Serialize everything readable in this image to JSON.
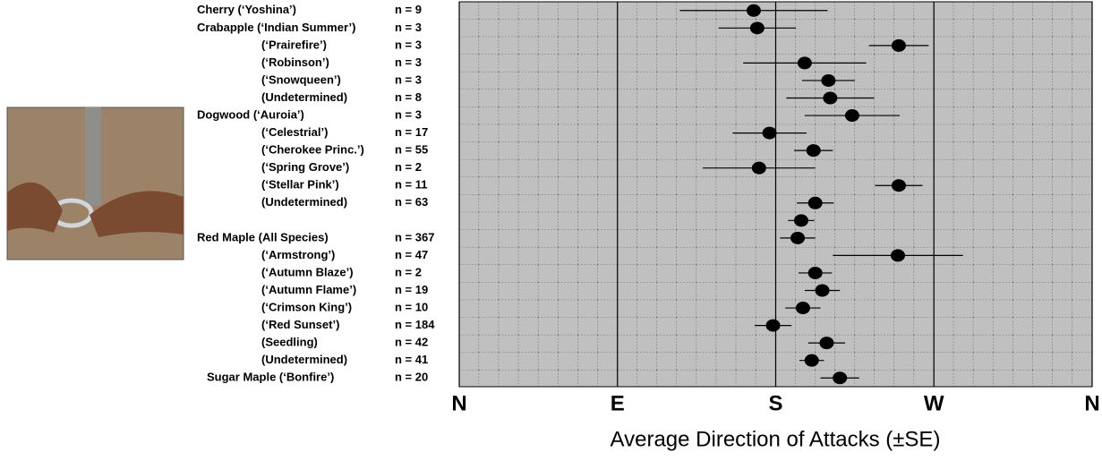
{
  "chart_data": {
    "type": "dot-errorbar",
    "xlabel": "Average Direction of Attacks (±SE)",
    "categories": [
      "Cherry (‘Yoshina’)",
      "Crabapple (‘Indian Summer’)",
      "(‘Prairefire’)",
      "(‘Robinson’)",
      "(‘Snowqueen’)",
      "(Undetermined)",
      "Dogwood (‘Auroia’)",
      "(‘Celestrial’)",
      "(‘Cherokee Princ.’)",
      "(‘Spring Grove’)",
      "(‘Stellar Pink’)",
      "(Undetermined)",
      null,
      "Red Maple (All Species)",
      "(‘Armstrong’)",
      "(‘Autumn Blaze’)",
      "(‘Autumn Flame’)",
      "(‘Crimson King’)",
      "(‘Red Sunset’)",
      "(Seedling)",
      "(Undetermined)",
      "Sugar Maple (‘Bonfire’)"
    ],
    "n_labels": [
      "n = 9",
      "n = 3",
      "n = 3",
      "n = 3",
      "n = 3",
      "n = 8",
      "n = 3",
      "n = 17",
      "n = 55",
      "n = 2",
      "n = 11",
      "n = 63",
      null,
      "n = 367",
      "n = 47",
      "n = 2",
      "n = 19",
      "n = 10",
      "n = 184",
      "n = 42",
      "n = 41",
      "n = 20"
    ],
    "values": [
      167.5,
      169.5,
      250,
      196.5,
      210,
      211,
      223.5,
      176.5,
      201.5,
      170.5,
      250,
      202.5,
      194.5,
      192.5,
      249.5,
      202.5,
      206.5,
      195.5,
      178.5,
      209,
      200.5,
      216.5
    ],
    "errors": [
      42,
      22,
      17,
      35,
      15,
      25,
      27,
      21,
      11,
      32,
      13.5,
      10.5,
      7.5,
      10,
      37,
      9.5,
      10,
      10,
      10.5,
      10.5,
      7,
      11
    ],
    "color": "#000000",
    "xlim": [
      0,
      360
    ],
    "xticks": [
      {
        "value": 0,
        "label": "N"
      },
      {
        "value": 90,
        "label": "E"
      },
      {
        "value": 180,
        "label": "S"
      },
      {
        "value": 270,
        "label": "W"
      },
      {
        "value": 360,
        "label": "N"
      }
    ],
    "grid": true
  }
}
